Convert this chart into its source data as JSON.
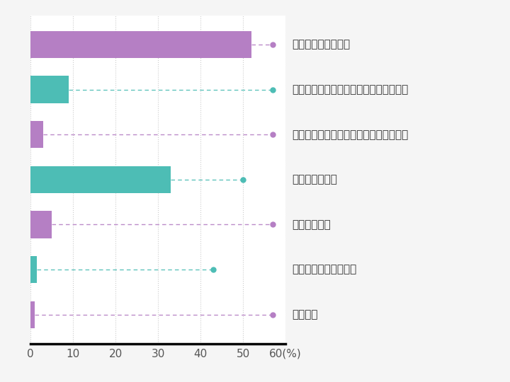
{
  "categories": [
    "カカオも電話も毎日",
    "カカオは毎日・電話は１週間に１、２回",
    "カカオは毎日・電話は１ヶ月に１、２回",
    "カカオだけ毎日",
    "電話だけ毎日",
    "カカオだけ３日に１回",
    "特になし"
  ],
  "values": [
    52,
    9,
    3,
    33,
    5,
    1.5,
    1
  ],
  "colors": [
    "#b57fc4",
    "#4dbdb5",
    "#b57fc4",
    "#4dbdb5",
    "#b57fc4",
    "#4dbdb5",
    "#b57fc4"
  ],
  "dot_x": [
    57,
    57,
    57,
    50,
    57,
    43,
    57
  ],
  "xlim": [
    0,
    60
  ],
  "xticks": [
    0,
    10,
    20,
    30,
    40,
    50,
    60
  ],
  "xlabel": "(%)",
  "background_color": "#f5f5f5",
  "plot_background": "#ffffff",
  "bar_height": 0.6,
  "label_fontsize": 11,
  "tick_fontsize": 11
}
